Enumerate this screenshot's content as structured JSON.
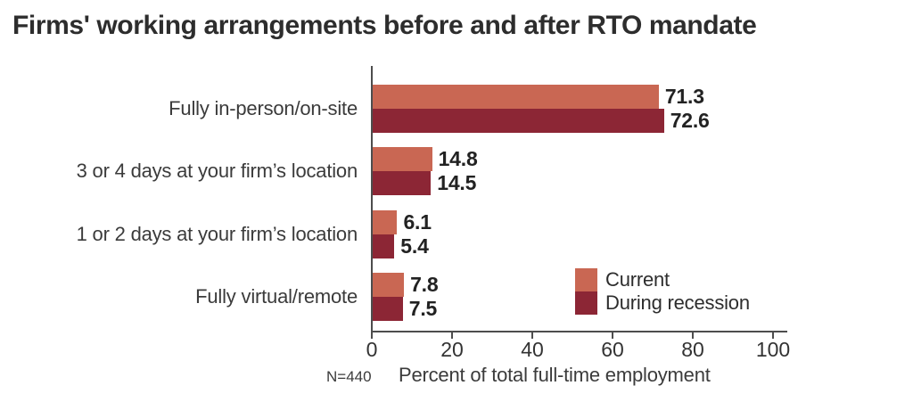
{
  "title": "Firms' working arrangements before and after RTO mandate",
  "note": "N=440",
  "colors": {
    "current": "#c96753",
    "recession": "#8c2635",
    "axis": "#4d4d4d",
    "title_text": "#2d2d2d",
    "label_text": "#3b3b3b"
  },
  "chart_data": {
    "type": "bar",
    "orientation": "horizontal",
    "title": "Firms' working arrangements before and after RTO mandate",
    "categories": [
      "Fully in-person/on-site",
      "3 or 4 days at your firm’s location",
      "1 or 2 days at your firm’s location",
      "Fully virtual/remote"
    ],
    "series": [
      {
        "name": "Current",
        "color": "#c96753",
        "values": [
          71.3,
          14.8,
          6.1,
          7.8
        ]
      },
      {
        "name": "During recession",
        "color": "#8c2635",
        "values": [
          72.6,
          14.5,
          5.4,
          7.5
        ]
      }
    ],
    "xlabel": "Percent of total full-time employment",
    "ylabel": "",
    "xlim": [
      0,
      100
    ],
    "xticks": [
      0,
      20,
      40,
      60,
      80,
      100
    ],
    "note": "N=440",
    "grid": false,
    "legend_position": "inside-bottom-right",
    "value_labels": true
  }
}
